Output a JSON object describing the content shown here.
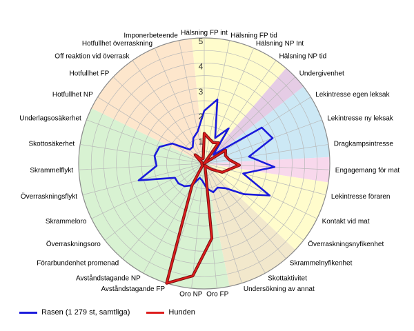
{
  "chart_data": {
    "type": "radar",
    "title": "",
    "rmax": 5,
    "tick_labels": [
      "1",
      "2",
      "3",
      "4",
      "5"
    ],
    "categories": [
      "Hälsning FP int",
      "Hälsning FP tid",
      "Hälsning NP Int",
      "Hälsning NP tid",
      "Undergivenhet",
      "Lekintresse egen leksak",
      "Lekintresse ny leksak",
      "Dragkampsintresse",
      "Engagemang för mat",
      "Lekintresse föraren",
      "Kontakt vid mat",
      "Överraskningsnyfikenhet",
      "Skrammelnyfikenhet",
      "Skottaktivitet",
      "Undersökning av annat",
      "Oro FP",
      "Oro NP",
      "Avståndstagande FP",
      "Avståndstagande NP",
      "Förarbundenhet promenad",
      "Överraskningsoro",
      "Skrammeloro",
      "Överraskningsflykt",
      "Skrammelflykt",
      "Skottosäkerhet",
      "Underlagsosäkerhet",
      "Hotfullhet NP",
      "Hotfullhet FP",
      "Off reaktion vid överrask",
      "Hotfullhet överraskning",
      "Imponerbeteende"
    ],
    "sectors": [
      {
        "from": 0,
        "to": 3,
        "color": "#fffccc"
      },
      {
        "from": 4,
        "to": 4,
        "color": "#e5cce5"
      },
      {
        "from": 5,
        "to": 7,
        "color": "#cce8f5"
      },
      {
        "from": 8,
        "to": 8,
        "color": "#f8d8ec"
      },
      {
        "from": 9,
        "to": 11,
        "color": "#fffccc"
      },
      {
        "from": 12,
        "to": 14,
        "color": "#f2e8cc"
      },
      {
        "from": 15,
        "to": 25,
        "color": "#d8f2d2"
      },
      {
        "from": 26,
        "to": 30,
        "color": "#fde6cc"
      }
    ],
    "series": [
      {
        "name": "Rasen (1 279 st, samtliga)",
        "color": "#1a1adb",
        "values": [
          2.1,
          2.6,
          1.1,
          1.7,
          0.5,
          2.7,
          2.9,
          1.8,
          2.8,
          1.6,
          2.9,
          2.0,
          1.3,
          1.1,
          1.2,
          1.0,
          0.7,
          0.6,
          1.0,
          1.2,
          1.3,
          1.3,
          2.7,
          1.9,
          2.0,
          1.9,
          1.5,
          0.8,
          0.8,
          1.1,
          1.3
        ]
      },
      {
        "name": "Hunden",
        "color": "#dd1c1c",
        "values": [
          1.2,
          1.0,
          0.9,
          1.0,
          0.0,
          1.0,
          0.9,
          1.0,
          1.4,
          1.0,
          0.8,
          0.4,
          0.2,
          0.1,
          0.1,
          3.0,
          4.5,
          5.0,
          1.0,
          0.1,
          0.1,
          0.1,
          0.1,
          0.1,
          0.1,
          0.1,
          0.2,
          0.5,
          0.2,
          0.2,
          0.2
        ]
      }
    ]
  }
}
